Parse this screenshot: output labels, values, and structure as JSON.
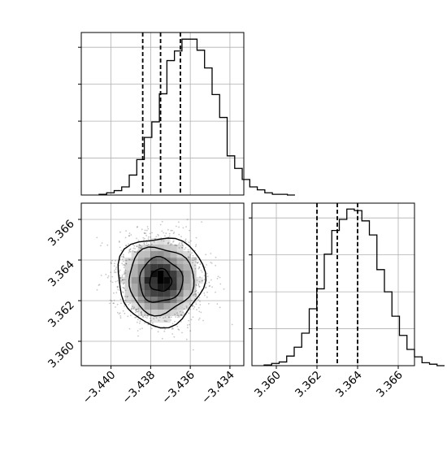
{
  "chart_data": [
    {
      "panel": "marginal-x",
      "type": "histogram",
      "xlim": [
        -3.4415,
        -3.4333
      ],
      "bins": {
        "start": -3.4406,
        "width": 0.00038
      },
      "counts": [
        1,
        3,
        6,
        11,
        27,
        48,
        78,
        99,
        137,
        182,
        195,
        211,
        211,
        196,
        172,
        136,
        105,
        53,
        36,
        21,
        11,
        7,
        3,
        1,
        1,
        0
      ],
      "ylim": [
        0,
        220
      ],
      "quantile_lines": [
        -3.4384,
        -3.4375,
        -3.4365
      ],
      "grid": true
    },
    {
      "panel": "joint",
      "type": "2d-histogram-contour",
      "xlim": [
        -3.4415,
        -3.4333
      ],
      "ylim": [
        3.3588,
        3.3668
      ],
      "center": {
        "x": -3.4375,
        "y": 3.363
      },
      "spread": {
        "x": 0.00095,
        "y": 0.00095
      },
      "contour_levels_sigma": [
        0.5,
        1.0,
        1.5,
        2.0
      ],
      "x_ticks": [
        -3.44,
        -3.438,
        -3.436,
        -3.434
      ],
      "x_tick_labels": [
        "−3.440",
        "−3.438",
        "−3.436",
        "−3.434"
      ],
      "y_ticks": [
        3.36,
        3.362,
        3.364,
        3.366
      ],
      "y_tick_labels": [
        "3.360",
        "3.362",
        "3.364",
        "3.366"
      ],
      "grid": true
    },
    {
      "panel": "marginal-y",
      "type": "histogram",
      "xlim": [
        3.3588,
        3.3668
      ],
      "bins": {
        "start": 3.3594,
        "width": 0.00037
      },
      "counts": [
        1,
        3,
        5,
        13,
        25,
        44,
        77,
        104,
        151,
        183,
        198,
        212,
        210,
        196,
        177,
        130,
        100,
        67,
        41,
        22,
        12,
        4,
        2,
        0
      ],
      "ylim": [
        0,
        220
      ],
      "quantile_lines": [
        3.362,
        3.363,
        3.364
      ],
      "x_ticks": [
        3.36,
        3.362,
        3.364,
        3.366
      ],
      "x_tick_labels": [
        "3.360",
        "3.362",
        "3.364",
        "3.366"
      ],
      "grid": true
    }
  ]
}
